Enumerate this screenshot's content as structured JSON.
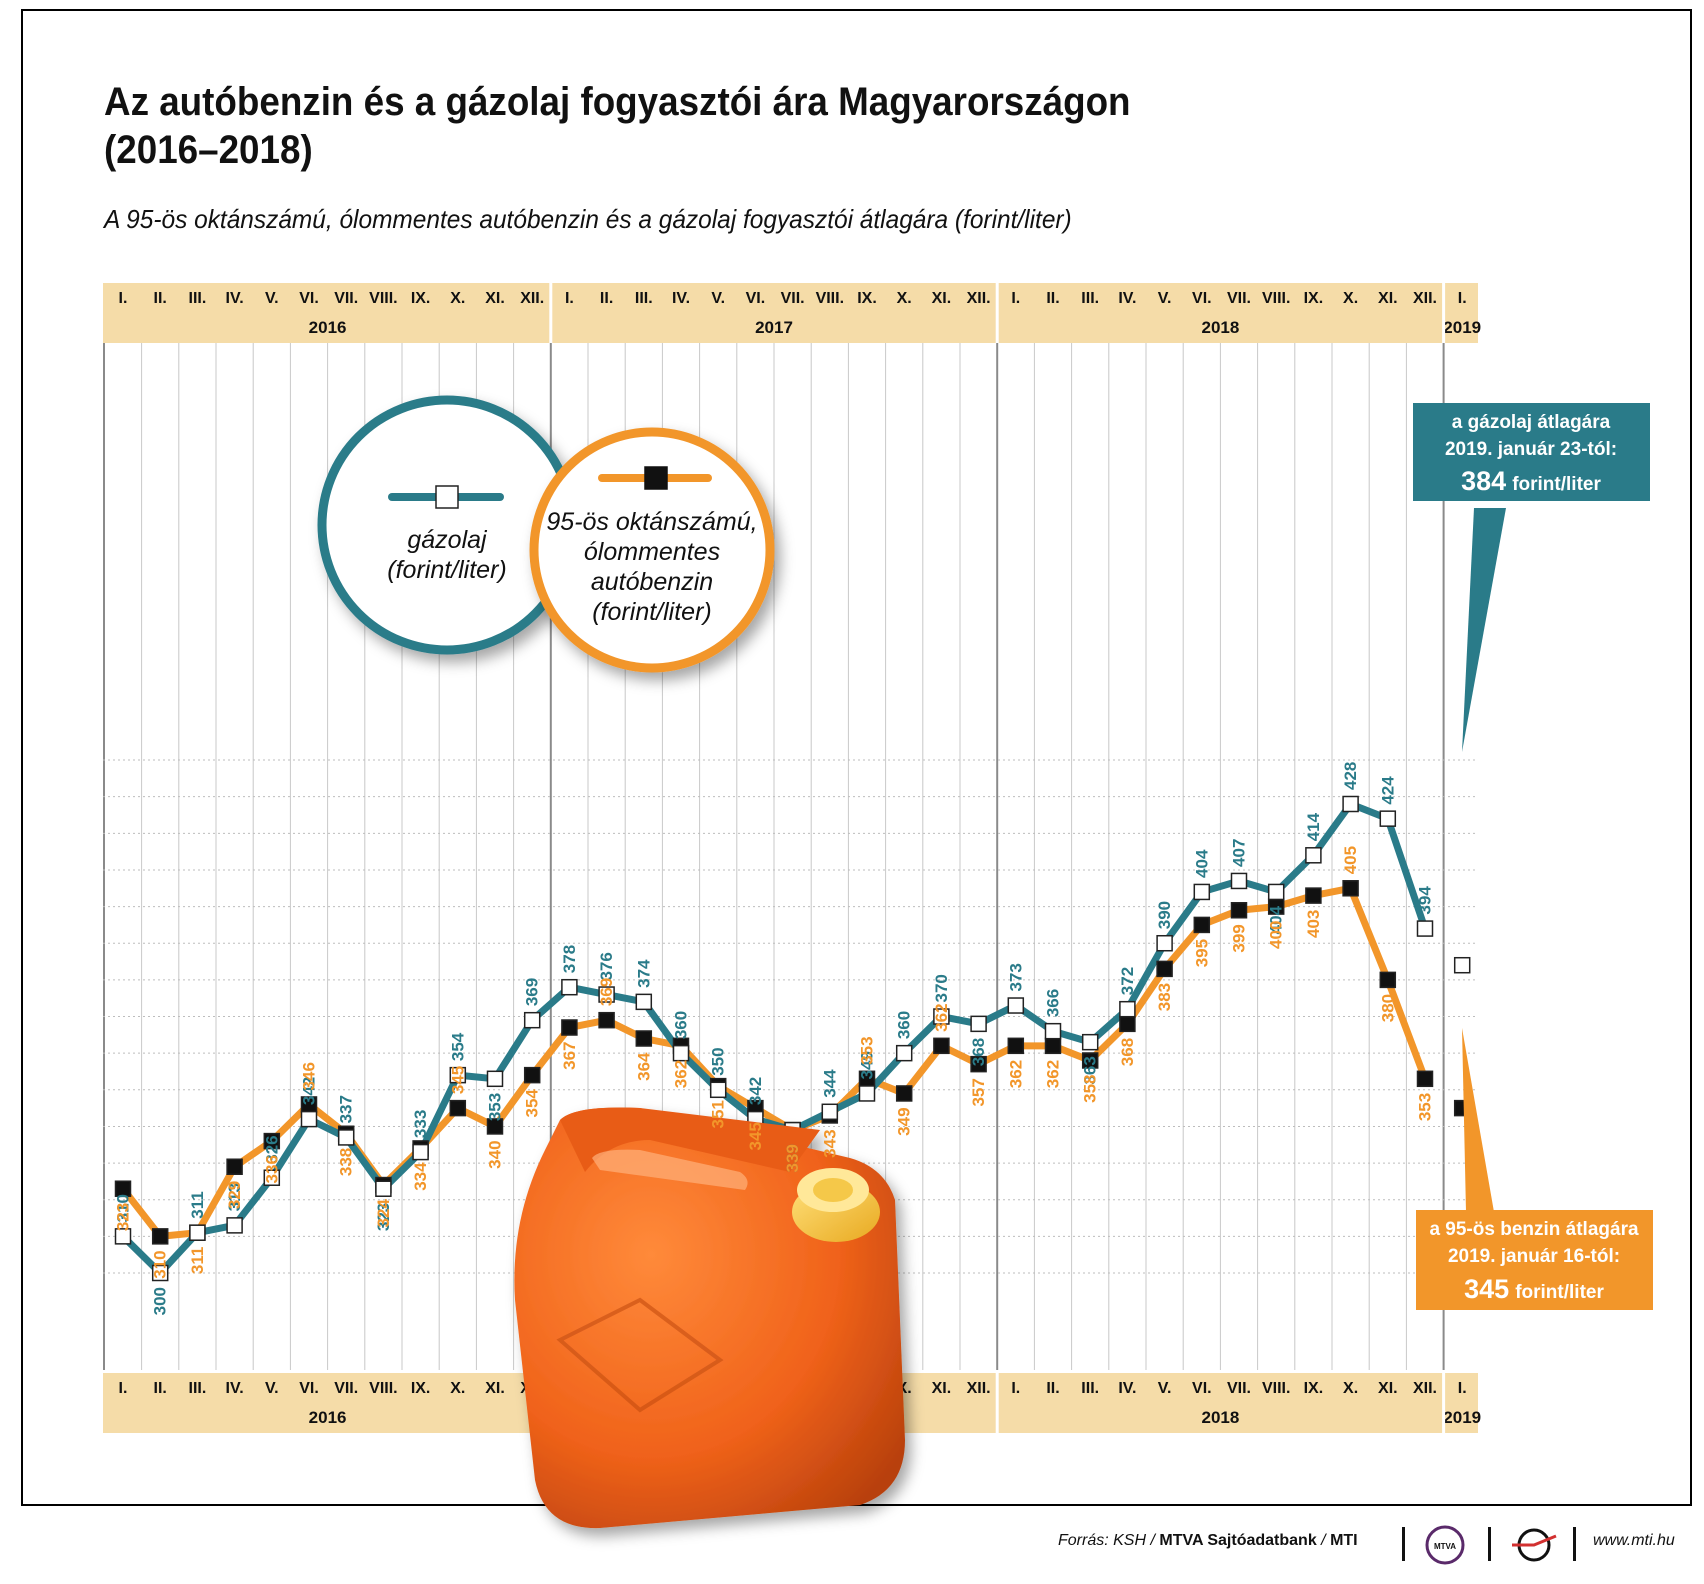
{
  "title_line1": "Az autóbenzin és a gázolaj fogyasztói ára Magyarországon",
  "title_line2": "(2016–2018)",
  "subtitle": "A 95-ös oktánszámú, ólommentes autóbenzin és a gázolaj fogyasztói átlagára (forint/liter)",
  "legend": {
    "diesel": [
      "gázolaj",
      "(forint/liter)"
    ],
    "petrol": [
      "95-ös oktánszámú,",
      "ólommentes",
      "autóbenzin",
      "(forint/liter)"
    ]
  },
  "callouts": {
    "diesel": {
      "line1": "a gázolaj átlagára",
      "line2": "2019. január 23-tól:",
      "value": "384",
      "unit": "forint/liter"
    },
    "petrol": {
      "line1": "a 95-ös benzin átlagára",
      "line2": "2019. január 16-tól:",
      "value": "345",
      "unit": "forint/liter"
    }
  },
  "source": {
    "prefix": "Forrás: KSH / ",
    "agency": "MTVA Sajtóadatbank",
    "sep": " / ",
    "mti": "MTI"
  },
  "site": "www.mti.hu",
  "logo_text": "MTVA",
  "colors": {
    "diesel": "#2a7b89",
    "petrol": "#f2962a",
    "band": "#f5dca8",
    "grid": "#c8c8c8"
  },
  "chart_data": {
    "type": "line",
    "title": "Az autóbenzin és a gázolaj fogyasztói ára Magyarországon (2016–2018)",
    "subtitle": "A 95-ös oktánszámú, ólommentes autóbenzin és a gázolaj fogyasztói átlagára (forint/liter)",
    "years": [
      "2016",
      "2017",
      "2018",
      "2019"
    ],
    "months": [
      "I.",
      "II.",
      "III.",
      "IV.",
      "V.",
      "VI.",
      "VII.",
      "VIII.",
      "IX.",
      "X.",
      "XI.",
      "XII."
    ],
    "ylim": [
      290,
      440
    ],
    "grid": true,
    "series": [
      {
        "name": "gázolaj (forint/liter)",
        "color": "#2a7b89",
        "marker": "open-square",
        "values": [
          310,
          300,
          311,
          313,
          326,
          342,
          337,
          323,
          333,
          354,
          353,
          369,
          378,
          376,
          374,
          360,
          350,
          342,
          339,
          344,
          349,
          360,
          370,
          368,
          373,
          366,
          363,
          372,
          390,
          404,
          407,
          404,
          414,
          428,
          424,
          394
        ]
      },
      {
        "name": "95-ös oktánszámú, ólommentes autóbenzin (forint/liter)",
        "color": "#f2962a",
        "marker": "filled-square",
        "values": [
          323,
          310,
          311,
          329,
          336,
          346,
          338,
          324,
          334,
          345,
          340,
          354,
          367,
          369,
          364,
          362,
          351,
          345,
          339,
          343,
          353,
          349,
          362,
          357,
          362,
          362,
          358,
          368,
          383,
          395,
          399,
          400,
          403,
          405,
          380,
          353
        ]
      }
    ],
    "extra_points": [
      {
        "series": "gázolaj",
        "period": "2019 I.",
        "value": 384
      },
      {
        "series": "95-ös benzin",
        "period": "2019 I.",
        "value": 345
      }
    ]
  }
}
